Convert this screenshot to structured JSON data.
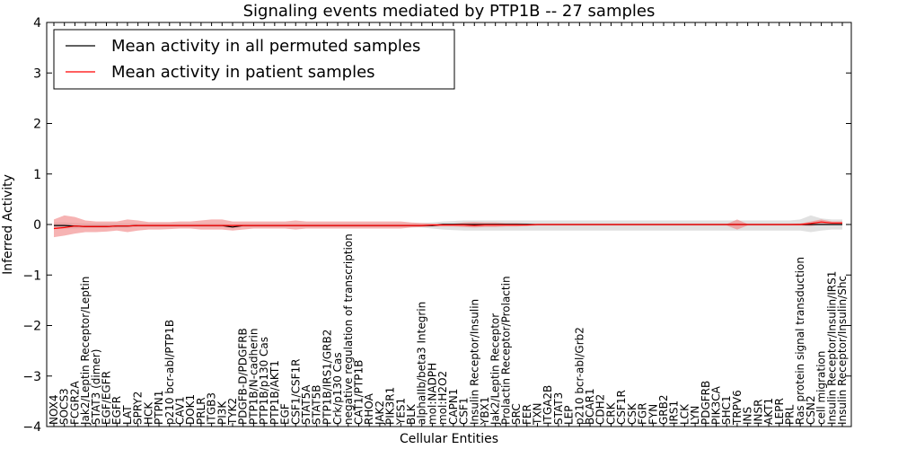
{
  "chart_data": {
    "type": "line",
    "title": "Signaling events mediated by PTP1B -- 27 samples",
    "xlabel": "Cellular Entities",
    "ylabel": "Inferred Activity",
    "ylim": [
      -4,
      4
    ],
    "yticks": [
      -4,
      -3,
      -2,
      -1,
      0,
      1,
      2,
      3,
      4
    ],
    "ytick_labels": [
      "−4",
      "−3",
      "−2",
      "−1",
      "0",
      "1",
      "2",
      "3",
      "4"
    ],
    "legend": {
      "position": "top-left",
      "entries": [
        {
          "label": "Mean activity in all permuted samples",
          "color": "#000000"
        },
        {
          "label": "Mean activity in patient samples",
          "color": "#ff0000"
        }
      ]
    },
    "categories": [
      "NOX4",
      "SOCS3",
      "FCGR2A",
      "Jak2/Leptin Receptor/Leptin",
      "STAT3 (dimer)",
      "EGF/EGFR",
      "EGFR",
      "LAT",
      "SPRY2",
      "HCK",
      "PTPN1",
      "p210 bcr-abl/PTP1B",
      "CAV1",
      "DOK1",
      "PRLR",
      "ITGB3",
      "PI3K",
      "TYK2",
      "PDGFB-D/PDGFRB",
      "PTP1B/N-cadherin",
      "PTP1B/p130 Cas",
      "PTP1B/AKT1",
      "EGF",
      "CSF1/CSF1R",
      "STAT5A",
      "STAT5B",
      "PTP1B/IRS1/GRB2",
      "Crk/p130 Cas",
      "negative regulation of transcription",
      "CAT1/PTP1B",
      "RHOA",
      "JAK2",
      "PIK3R1",
      "YES1",
      "BLK",
      "alphaIIb/beta3 Integrin",
      "mol:NADPH",
      "mol:H2O2",
      "CAPN1",
      "CSF1",
      "Insulin Receptor/Insulin",
      "YBX1",
      "Jak2/Leptin Receptor",
      "Prolactin Receptor/Prolactin",
      "SRC",
      "FER",
      "TXN",
      "ITGA2B",
      "STAT3",
      "LEP",
      "p210 bcr-abl/Grb2",
      "BCAR1",
      "CDH2",
      "CRK",
      "CSF1R",
      "CSK",
      "FGR",
      "FYN",
      "GRB2",
      "IRS1",
      "LCK",
      "LYN",
      "PDGFRB",
      "PIK3CA",
      "SHC1",
      "TRPV6",
      "INS",
      "INSR",
      "AKT1",
      "LEPR",
      "PRL",
      "Ras protein signal transduction",
      "CSN2",
      "cell migration",
      "Insulin Receptor/Insulin/IRS1",
      "Insulin Receptor/Insulin/Shc"
    ],
    "series": [
      {
        "name": "Mean activity in all permuted samples",
        "color": "#000000",
        "values": [
          -0.02,
          -0.02,
          -0.03,
          -0.04,
          -0.04,
          -0.04,
          -0.03,
          -0.03,
          -0.02,
          -0.02,
          -0.02,
          -0.02,
          -0.02,
          -0.02,
          -0.02,
          -0.02,
          -0.02,
          -0.05,
          -0.02,
          -0.02,
          -0.02,
          -0.02,
          -0.02,
          -0.02,
          -0.02,
          -0.02,
          -0.02,
          -0.02,
          -0.02,
          -0.02,
          -0.02,
          -0.02,
          -0.02,
          -0.02,
          -0.02,
          -0.02,
          -0.02,
          0.0,
          0.0,
          0.0,
          0.0,
          0.0,
          0.0,
          0.0,
          0.0,
          0.0,
          0.0,
          0.0,
          0.0,
          0.0,
          0.0,
          0.0,
          0.0,
          0.0,
          0.0,
          0.0,
          0.0,
          0.0,
          0.0,
          0.0,
          0.0,
          0.0,
          0.0,
          0.0,
          0.0,
          0.0,
          0.0,
          0.0,
          0.0,
          0.0,
          0.0,
          0.0,
          0.0,
          0.0,
          0.0,
          0.0
        ],
        "band_low": [
          -0.08,
          -0.08,
          -0.08,
          -0.07,
          -0.07,
          -0.07,
          -0.06,
          -0.06,
          -0.05,
          -0.05,
          -0.05,
          -0.05,
          -0.05,
          -0.05,
          -0.05,
          -0.05,
          -0.05,
          -0.07,
          -0.05,
          -0.05,
          -0.05,
          -0.05,
          -0.05,
          -0.05,
          -0.05,
          -0.05,
          -0.05,
          -0.05,
          -0.05,
          -0.05,
          -0.05,
          -0.05,
          -0.05,
          -0.05,
          -0.05,
          -0.06,
          -0.08,
          -0.1,
          -0.11,
          -0.12,
          -0.12,
          -0.12,
          -0.12,
          -0.12,
          -0.12,
          -0.12,
          -0.12,
          -0.12,
          -0.12,
          -0.12,
          -0.12,
          -0.12,
          -0.12,
          -0.12,
          -0.12,
          -0.12,
          -0.12,
          -0.12,
          -0.12,
          -0.12,
          -0.12,
          -0.12,
          -0.12,
          -0.12,
          -0.12,
          -0.12,
          -0.12,
          -0.12,
          -0.12,
          -0.12,
          -0.12,
          -0.12,
          -0.15,
          -0.12,
          -0.1,
          -0.1
        ],
        "band_high": [
          0.04,
          0.04,
          0.03,
          0.02,
          0.02,
          0.02,
          0.02,
          0.02,
          0.02,
          0.02,
          0.02,
          0.02,
          0.02,
          0.02,
          0.02,
          0.02,
          0.02,
          0.0,
          0.02,
          0.02,
          0.02,
          0.02,
          0.02,
          0.02,
          0.02,
          0.02,
          0.02,
          0.02,
          0.02,
          0.02,
          0.02,
          0.02,
          0.02,
          0.02,
          0.02,
          0.03,
          0.04,
          0.06,
          0.07,
          0.08,
          0.08,
          0.08,
          0.08,
          0.08,
          0.08,
          0.08,
          0.08,
          0.08,
          0.08,
          0.08,
          0.08,
          0.08,
          0.08,
          0.08,
          0.08,
          0.08,
          0.08,
          0.08,
          0.08,
          0.08,
          0.08,
          0.08,
          0.08,
          0.08,
          0.08,
          0.08,
          0.08,
          0.08,
          0.08,
          0.08,
          0.08,
          0.1,
          0.18,
          0.12,
          0.1,
          0.1
        ]
      },
      {
        "name": "Mean activity in patient samples",
        "color": "#ff0000",
        "values": [
          -0.08,
          -0.06,
          -0.03,
          -0.04,
          -0.04,
          -0.04,
          -0.03,
          -0.03,
          -0.02,
          -0.02,
          -0.02,
          -0.02,
          -0.02,
          -0.02,
          -0.02,
          -0.02,
          -0.02,
          -0.02,
          -0.02,
          -0.02,
          -0.02,
          -0.02,
          -0.02,
          -0.02,
          -0.02,
          -0.02,
          -0.02,
          -0.02,
          -0.02,
          -0.02,
          -0.02,
          -0.02,
          -0.02,
          -0.02,
          -0.02,
          -0.02,
          -0.01,
          -0.01,
          -0.01,
          -0.01,
          -0.02,
          -0.01,
          -0.01,
          -0.01,
          -0.01,
          -0.01,
          0.0,
          0.0,
          0.0,
          0.0,
          0.0,
          0.0,
          0.0,
          0.0,
          0.0,
          0.0,
          0.0,
          0.0,
          0.0,
          0.0,
          0.0,
          0.0,
          0.0,
          0.0,
          0.0,
          0.0,
          0.0,
          0.0,
          0.0,
          0.0,
          0.0,
          0.0,
          0.02,
          0.05,
          0.03,
          0.03
        ],
        "band_low": [
          -0.25,
          -0.22,
          -0.18,
          -0.15,
          -0.15,
          -0.14,
          -0.12,
          -0.15,
          -0.12,
          -0.1,
          -0.1,
          -0.09,
          -0.08,
          -0.08,
          -0.1,
          -0.1,
          -0.1,
          -0.12,
          -0.1,
          -0.08,
          -0.08,
          -0.08,
          -0.08,
          -0.1,
          -0.08,
          -0.08,
          -0.08,
          -0.08,
          -0.08,
          -0.08,
          -0.08,
          -0.08,
          -0.08,
          -0.08,
          -0.06,
          -0.05,
          -0.04,
          -0.04,
          -0.04,
          -0.05,
          -0.06,
          -0.05,
          -0.05,
          -0.04,
          -0.04,
          -0.03,
          -0.02,
          -0.02,
          -0.02,
          -0.02,
          -0.02,
          -0.02,
          -0.02,
          -0.02,
          -0.02,
          -0.02,
          -0.02,
          -0.02,
          -0.02,
          -0.02,
          -0.02,
          -0.02,
          -0.02,
          -0.02,
          -0.02,
          -0.1,
          -0.02,
          -0.02,
          -0.02,
          -0.02,
          -0.02,
          -0.02,
          -0.03,
          0.0,
          0.0,
          0.0
        ],
        "band_high": [
          0.1,
          0.18,
          0.15,
          0.08,
          0.06,
          0.06,
          0.06,
          0.1,
          0.08,
          0.05,
          0.05,
          0.05,
          0.06,
          0.06,
          0.08,
          0.1,
          0.1,
          0.06,
          0.06,
          0.06,
          0.06,
          0.06,
          0.06,
          0.08,
          0.06,
          0.06,
          0.06,
          0.06,
          0.06,
          0.06,
          0.06,
          0.06,
          0.06,
          0.06,
          0.04,
          0.03,
          0.02,
          0.02,
          0.02,
          0.04,
          0.05,
          0.04,
          0.04,
          0.03,
          0.03,
          0.02,
          0.01,
          0.01,
          0.01,
          0.01,
          0.01,
          0.01,
          0.01,
          0.01,
          0.01,
          0.01,
          0.01,
          0.01,
          0.01,
          0.01,
          0.01,
          0.01,
          0.01,
          0.01,
          0.01,
          0.1,
          0.01,
          0.01,
          0.01,
          0.01,
          0.01,
          0.02,
          0.06,
          0.1,
          0.06,
          0.06
        ]
      }
    ]
  }
}
